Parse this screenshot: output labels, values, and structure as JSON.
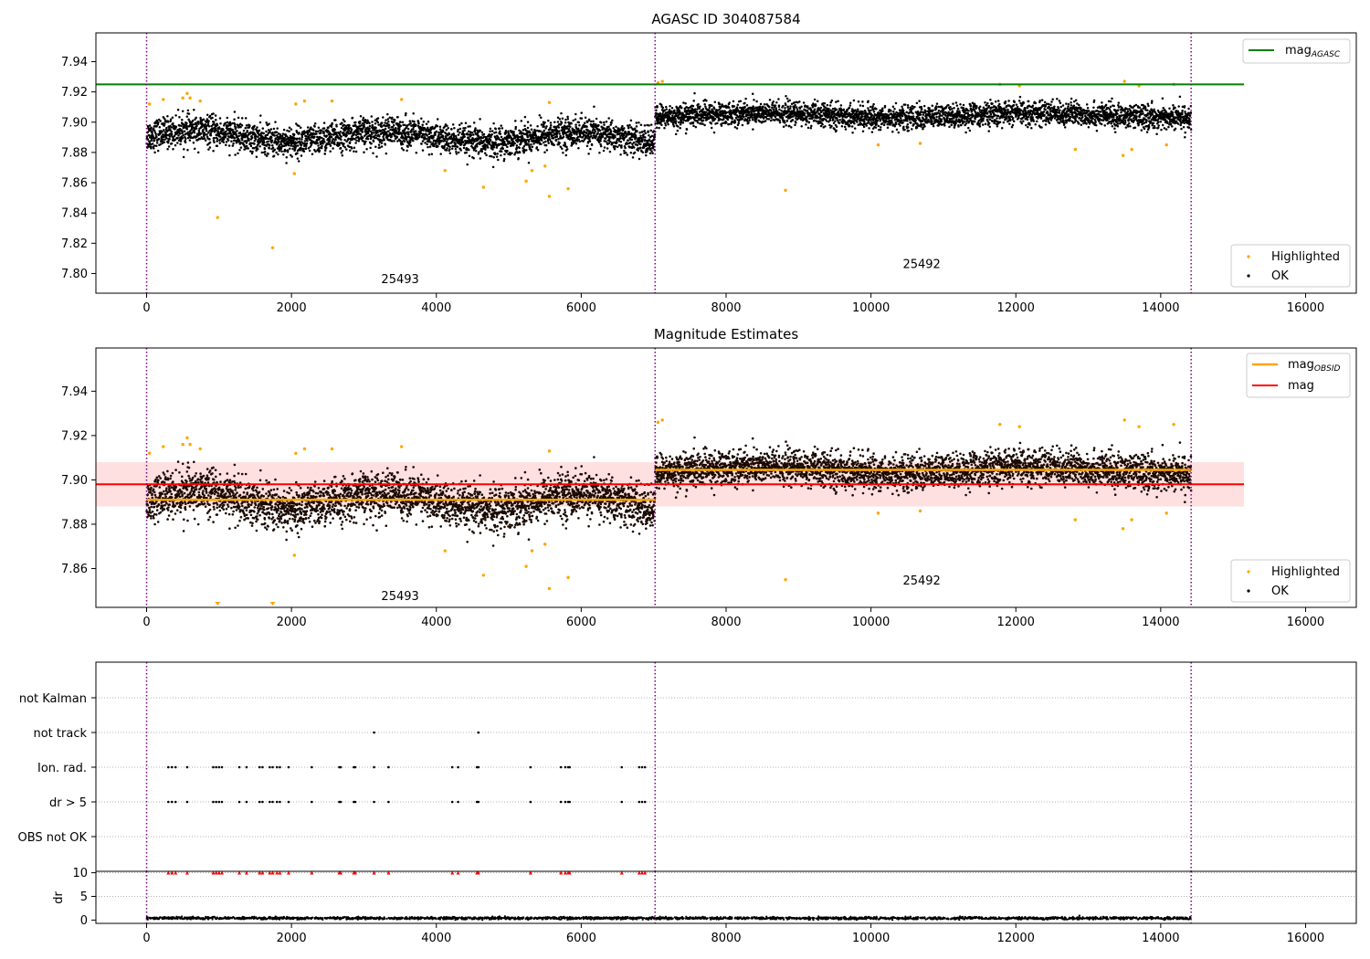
{
  "chart_data": [
    {
      "type": "scatter",
      "title": "AGASC ID 304087584",
      "xlabel": "",
      "ylabel": "",
      "xlim": [
        -700,
        16700
      ],
      "ylim": [
        7.787,
        7.959
      ],
      "xticks": [
        0,
        2000,
        4000,
        6000,
        8000,
        10000,
        12000,
        14000,
        16000
      ],
      "xtick_labels": [
        "0",
        "2000",
        "4000",
        "6000",
        "8000",
        "10000",
        "12000",
        "14000",
        "16000"
      ],
      "yticks": [
        7.8,
        7.82,
        7.84,
        7.86,
        7.88,
        7.9,
        7.92,
        7.94
      ],
      "ytick_labels": [
        "7.80",
        "7.82",
        "7.84",
        "7.86",
        "7.88",
        "7.90",
        "7.92",
        "7.94"
      ],
      "vlines": [
        0,
        7020,
        14420
      ],
      "hlines": [
        {
          "name": "mag_AGASC",
          "y": 7.925,
          "x_range": [
            -700,
            15150
          ],
          "color": "#008000"
        }
      ],
      "obsid_labels": [
        {
          "text": "25493",
          "x": 3500,
          "y": 7.796
        },
        {
          "text": "25492",
          "x": 10700,
          "y": 7.806
        }
      ],
      "segments": [
        {
          "obsid": "25493",
          "x_range": [
            0,
            7020
          ],
          "mean": 7.891,
          "spread": 0.009
        },
        {
          "obsid": "25492",
          "x_range": [
            7020,
            14420
          ],
          "mean": 7.9045,
          "spread": 0.007
        }
      ],
      "highlighted_points": [
        {
          "x": 980,
          "y": 7.837
        },
        {
          "x": 1740,
          "y": 7.817
        },
        {
          "x": 2040,
          "y": 7.866
        },
        {
          "x": 4120,
          "y": 7.868
        },
        {
          "x": 4650,
          "y": 7.857
        },
        {
          "x": 5240,
          "y": 7.861
        },
        {
          "x": 5320,
          "y": 7.868
        },
        {
          "x": 5500,
          "y": 7.871
        },
        {
          "x": 5560,
          "y": 7.851
        },
        {
          "x": 5820,
          "y": 7.856
        },
        {
          "x": 8820,
          "y": 7.855
        },
        {
          "x": 10100,
          "y": 7.885
        },
        {
          "x": 12820,
          "y": 7.882
        },
        {
          "x": 13480,
          "y": 7.878
        },
        {
          "x": 13600,
          "y": 7.882
        },
        {
          "x": 14080,
          "y": 7.885
        },
        {
          "x": 10680,
          "y": 7.886
        },
        {
          "x": 40,
          "y": 7.912
        },
        {
          "x": 230,
          "y": 7.915
        },
        {
          "x": 500,
          "y": 7.916
        },
        {
          "x": 560,
          "y": 7.919
        },
        {
          "x": 600,
          "y": 7.916
        },
        {
          "x": 740,
          "y": 7.914
        },
        {
          "x": 2060,
          "y": 7.912
        },
        {
          "x": 2180,
          "y": 7.914
        },
        {
          "x": 2560,
          "y": 7.914
        },
        {
          "x": 3520,
          "y": 7.915
        },
        {
          "x": 5560,
          "y": 7.913
        },
        {
          "x": 7060,
          "y": 7.926
        },
        {
          "x": 7120,
          "y": 7.927
        },
        {
          "x": 11780,
          "y": 7.925
        },
        {
          "x": 12050,
          "y": 7.924
        },
        {
          "x": 13500,
          "y": 7.927
        },
        {
          "x": 13700,
          "y": 7.924
        },
        {
          "x": 14180,
          "y": 7.925
        }
      ],
      "legend": {
        "placement": "top-right",
        "entries": [
          {
            "label": "mag",
            "subscript": "AGASC",
            "color": "#008000"
          }
        ]
      },
      "legend2": {
        "placement": "bottom-right",
        "entries": [
          {
            "label": "Highlighted",
            "color": "#ffa500"
          },
          {
            "label": "OK",
            "color": "#000000"
          }
        ]
      }
    },
    {
      "type": "scatter",
      "title": "Magnitude Estimates",
      "xlabel": "",
      "ylabel": "",
      "xlim": [
        -700,
        16700
      ],
      "ylim": [
        7.8425,
        7.9595
      ],
      "xticks": [
        0,
        2000,
        4000,
        6000,
        8000,
        10000,
        12000,
        14000,
        16000
      ],
      "xtick_labels": [
        "0",
        "2000",
        "4000",
        "6000",
        "8000",
        "10000",
        "12000",
        "14000",
        "16000"
      ],
      "yticks": [
        7.86,
        7.88,
        7.9,
        7.92,
        7.94
      ],
      "ytick_labels": [
        "7.86",
        "7.88",
        "7.90",
        "7.92",
        "7.94"
      ],
      "vlines": [
        0,
        7020,
        14420
      ],
      "mag": {
        "value": 7.898,
        "band": [
          7.888,
          7.908
        ],
        "x_range": [
          -700,
          15150
        ],
        "color": "#ff0000"
      },
      "mag_obsid": [
        {
          "obsid": "25493",
          "value": 7.891,
          "x_range": [
            0,
            7020
          ]
        },
        {
          "obsid": "25492",
          "value": 7.9045,
          "x_range": [
            7020,
            14420
          ]
        }
      ],
      "obsid_labels": [
        {
          "text": "25493",
          "x": 3500,
          "y": 7.8475
        },
        {
          "text": "25492",
          "x": 10700,
          "y": 7.8545
        }
      ],
      "out_of_range_markers": [
        {
          "x": 980
        },
        {
          "x": 1740
        }
      ],
      "legend": {
        "placement": "top-right",
        "entries": [
          {
            "label": "mag",
            "subscript": "OBSID",
            "color": "#ffa500"
          },
          {
            "label": "mag",
            "subscript": "",
            "color": "#ff0000"
          }
        ]
      },
      "legend2": {
        "placement": "bottom-right",
        "entries": [
          {
            "label": "Highlighted",
            "color": "#ffa500"
          },
          {
            "label": "OK",
            "color": "#000000"
          }
        ]
      }
    },
    {
      "type": "scatter",
      "title": "",
      "xlim": [
        -700,
        16700
      ],
      "flags": [
        "not Kalman",
        "not track",
        "Ion. rad.",
        "dr > 5",
        "OBS not OK"
      ],
      "vlines": [
        0,
        7020,
        14420
      ],
      "flag_times": {
        "not Kalman": [],
        "not track": [
          3140,
          4580
        ],
        "Ion. rad.": [
          300,
          350,
          400,
          560,
          920,
          960,
          1000,
          1040,
          1280,
          1380,
          1560,
          1600,
          1700,
          1740,
          1800,
          1840,
          1960,
          2280,
          2660,
          2680,
          2860,
          2880,
          3140,
          3340,
          4220,
          4300,
          4560,
          4580,
          5300,
          5720,
          5780,
          5820,
          5840,
          6560,
          6800,
          6840,
          6880
        ],
        "dr > 5": [
          300,
          350,
          400,
          560,
          920,
          960,
          1000,
          1040,
          1280,
          1380,
          1560,
          1600,
          1700,
          1740,
          1800,
          1840,
          1960,
          2280,
          2660,
          2680,
          2860,
          2880,
          3140,
          3340,
          4220,
          4300,
          4560,
          4580,
          5300,
          5720,
          5780,
          5820,
          5840,
          6560,
          6800,
          6840,
          6880
        ],
        "OBS not OK": []
      }
    },
    {
      "type": "scatter",
      "title": "",
      "xlabel": "",
      "ylabel": "dr",
      "xlim": [
        -700,
        16700
      ],
      "ylim": [
        -0.7,
        10.3
      ],
      "xticks": [
        0,
        2000,
        4000,
        6000,
        8000,
        10000,
        12000,
        14000,
        16000
      ],
      "xtick_labels": [
        "0",
        "2000",
        "4000",
        "6000",
        "8000",
        "10000",
        "12000",
        "14000",
        "16000"
      ],
      "yticks": [
        0,
        5,
        10
      ],
      "ytick_labels": [
        "0",
        "5",
        "10"
      ],
      "vlines": [
        0,
        7020,
        14420
      ],
      "dr_baseline": {
        "x_range": [
          0,
          14420
        ],
        "mean": 0.4,
        "spread": 0.25
      },
      "clipped_markers_at": 10
    }
  ]
}
